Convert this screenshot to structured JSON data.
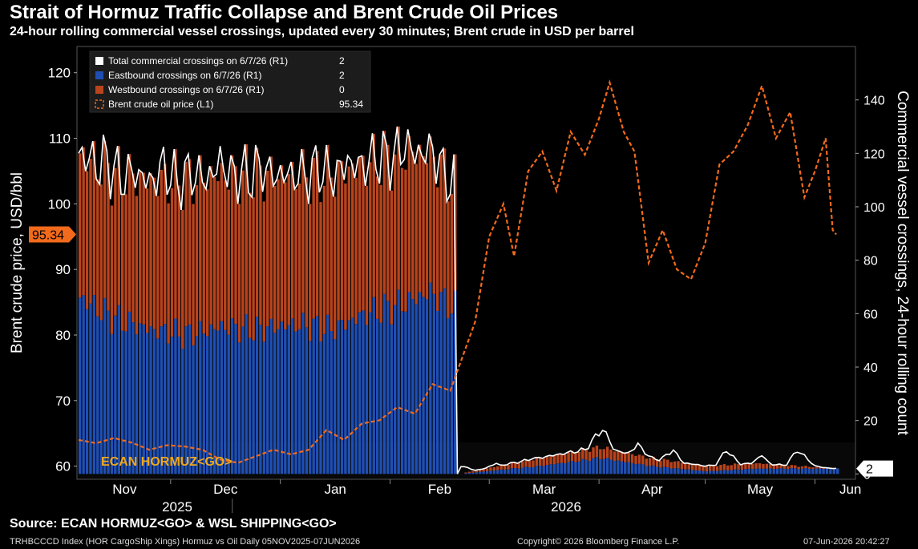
{
  "header": {
    "title": "Strait of Hormuz Traffic Collapse and Brent Crude Oil Prices",
    "subtitle": "24-hour rolling commercial vessel crossings, updated every 30 minutes; Brent crude in USD per barrel"
  },
  "footer": {
    "source": "Source: ECAN HORMUZ<GO> & WSL SHIPPING<GO>",
    "index_line": "TRHBCCCD Index (HOR CargoShip Xings) Hormuz vs Oil Daily 05NOV2025-07JUN2026",
    "copyright": "Copyright© 2026 Bloomberg Finance L.P.",
    "timestamp": "07-Jun-2026 20:42:27"
  },
  "colors": {
    "background": "#000000",
    "total": "#ffffff",
    "eastbound": "#1f4fb4",
    "westbound": "#b8441d",
    "brent": "#f26a1b",
    "ecan_label": "#f0a81c",
    "current_brent_tag": "#f26a1b"
  },
  "chart_data": {
    "type": "line",
    "title": "Strait of Hormuz Traffic Collapse and Brent Crude Oil Prices",
    "x_range": [
      "2025-11-05",
      "2026-06-07"
    ],
    "x_ticks": [
      "Nov",
      "Dec",
      "Jan",
      "Feb",
      "Mar",
      "Apr",
      "May",
      "Jun"
    ],
    "year_labels": [
      "2025",
      "2026"
    ],
    "y_left": {
      "label": "Brent crude price, USD/bbl",
      "range": [
        58,
        124
      ],
      "ticks": [
        60,
        70,
        80,
        90,
        100,
        110,
        120
      ]
    },
    "y_right": {
      "label": "Commercial vessel crossings, 24-hour rolling count",
      "range": [
        -2,
        160
      ],
      "ticks": [
        0,
        20,
        40,
        60,
        80,
        100,
        120,
        140
      ]
    },
    "current_left_tag": "95.34",
    "current_right_tag": "2",
    "annotation": "ECAN HORMUZ<GO>",
    "grid": false,
    "legend_position": "top-left",
    "legend": [
      {
        "label": "Total commercial crossings on 6/7/26 (R1)",
        "value": "2",
        "swatch": "white-box"
      },
      {
        "label": "Eastbound crossings on 6/7/26 (R1)",
        "value": "2",
        "swatch": "blue-box"
      },
      {
        "label": "Westbound crossings on 6/7/26 (R1)",
        "value": "0",
        "swatch": "orange-box"
      },
      {
        "label": "Brent crude oil price (L1)",
        "value": "95.34",
        "swatch": "dashed-orange"
      }
    ],
    "series": [
      {
        "name": "Total commercial crossings on 6/7/26 (R1)",
        "axis": "right",
        "points": [
          [
            "2025-11-05",
            120
          ],
          [
            "2025-11-09",
            112
          ],
          [
            "2025-11-13",
            118
          ],
          [
            "2025-11-17",
            108
          ],
          [
            "2025-11-21",
            114
          ],
          [
            "2025-11-25",
            104
          ],
          [
            "2025-11-29",
            116
          ],
          [
            "2025-12-03",
            106
          ],
          [
            "2025-12-07",
            114
          ],
          [
            "2025-12-11",
            104
          ],
          [
            "2025-12-15",
            118
          ],
          [
            "2025-12-19",
            108
          ],
          [
            "2025-12-23",
            110
          ],
          [
            "2025-12-27",
            116
          ],
          [
            "2025-12-31",
            104
          ],
          [
            "2026-01-04",
            112
          ],
          [
            "2026-01-08",
            108
          ],
          [
            "2026-01-12",
            116
          ],
          [
            "2026-01-16",
            106
          ],
          [
            "2026-01-20",
            118
          ],
          [
            "2026-01-24",
            108
          ],
          [
            "2026-01-28",
            120
          ],
          [
            "2026-02-01",
            112
          ],
          [
            "2026-02-05",
            124
          ],
          [
            "2026-02-09",
            118
          ],
          [
            "2026-02-13",
            122
          ],
          [
            "2026-02-16",
            110
          ],
          [
            "2026-02-19",
            108
          ],
          [
            "2026-02-20",
            0
          ],
          [
            "2026-02-21",
            3
          ],
          [
            "2026-02-26",
            1
          ],
          [
            "2026-03-03",
            4
          ],
          [
            "2026-03-08",
            0
          ],
          [
            "2026-03-13",
            6
          ],
          [
            "2026-03-18",
            3
          ],
          [
            "2026-03-23",
            7
          ],
          [
            "2026-03-28",
            9
          ],
          [
            "2026-04-02",
            17
          ],
          [
            "2026-04-07",
            5
          ],
          [
            "2026-04-12",
            11
          ],
          [
            "2026-04-17",
            4
          ],
          [
            "2026-04-22",
            9
          ],
          [
            "2026-04-27",
            0
          ],
          [
            "2026-05-02",
            0
          ],
          [
            "2026-05-07",
            9
          ],
          [
            "2026-05-12",
            2
          ],
          [
            "2026-05-17",
            7
          ],
          [
            "2026-05-22",
            0
          ],
          [
            "2026-05-27",
            9
          ],
          [
            "2026-06-01",
            3
          ],
          [
            "2026-06-05",
            2
          ],
          [
            "2026-06-07",
            2
          ]
        ]
      },
      {
        "name": "Eastbound crossings on 6/7/26 (R1)",
        "axis": "right",
        "points": [
          [
            "2025-11-05",
            66
          ],
          [
            "2025-11-15",
            58
          ],
          [
            "2025-11-25",
            54
          ],
          [
            "2025-12-05",
            52
          ],
          [
            "2025-12-15",
            55
          ],
          [
            "2025-12-25",
            54
          ],
          [
            "2026-01-05",
            56
          ],
          [
            "2026-01-15",
            54
          ],
          [
            "2026-01-25",
            60
          ],
          [
            "2026-02-05",
            64
          ],
          [
            "2026-02-12",
            68
          ],
          [
            "2026-02-19",
            62
          ],
          [
            "2026-02-20",
            0
          ],
          [
            "2026-03-15",
            3
          ],
          [
            "2026-04-01",
            6
          ],
          [
            "2026-04-15",
            3
          ],
          [
            "2026-05-01",
            1
          ],
          [
            "2026-05-15",
            2
          ],
          [
            "2026-06-07",
            2
          ]
        ]
      },
      {
        "name": "Westbound crossings on 6/7/26 (R1)",
        "axis": "right",
        "points": [
          [
            "2025-11-05",
            54
          ],
          [
            "2025-11-15",
            54
          ],
          [
            "2025-11-25",
            56
          ],
          [
            "2025-12-05",
            58
          ],
          [
            "2025-12-15",
            57
          ],
          [
            "2025-12-25",
            58
          ],
          [
            "2026-01-05",
            56
          ],
          [
            "2026-01-15",
            58
          ],
          [
            "2026-01-25",
            56
          ],
          [
            "2026-02-05",
            56
          ],
          [
            "2026-02-12",
            52
          ],
          [
            "2026-02-19",
            46
          ],
          [
            "2026-02-20",
            0
          ],
          [
            "2026-03-15",
            3
          ],
          [
            "2026-04-01",
            4
          ],
          [
            "2026-04-15",
            3
          ],
          [
            "2026-05-01",
            2
          ],
          [
            "2026-05-15",
            2
          ],
          [
            "2026-06-07",
            0
          ]
        ]
      },
      {
        "name": "Brent crude oil price (L1)",
        "axis": "left",
        "points": [
          [
            "2025-11-05",
            64.0
          ],
          [
            "2025-11-10",
            63.5
          ],
          [
            "2025-11-15",
            64.3
          ],
          [
            "2025-11-20",
            63.6
          ],
          [
            "2025-11-25",
            62.5
          ],
          [
            "2025-11-30",
            63.2
          ],
          [
            "2025-12-05",
            63.0
          ],
          [
            "2025-12-10",
            62.5
          ],
          [
            "2025-12-15",
            61.0
          ],
          [
            "2025-12-20",
            60.5
          ],
          [
            "2025-12-25",
            61.5
          ],
          [
            "2025-12-30",
            62.5
          ],
          [
            "2026-01-04",
            61.8
          ],
          [
            "2026-01-09",
            62.5
          ],
          [
            "2026-01-14",
            65.5
          ],
          [
            "2026-01-19",
            64.0
          ],
          [
            "2026-01-24",
            66.5
          ],
          [
            "2026-01-29",
            67.0
          ],
          [
            "2026-02-03",
            69.0
          ],
          [
            "2026-02-08",
            68.0
          ],
          [
            "2026-02-13",
            72.5
          ],
          [
            "2026-02-18",
            71.5
          ],
          [
            "2026-02-21",
            76.0
          ],
          [
            "2026-02-25",
            82.0
          ],
          [
            "2026-03-01",
            95.0
          ],
          [
            "2026-03-05",
            100.0
          ],
          [
            "2026-03-08",
            92.0
          ],
          [
            "2026-03-12",
            105.0
          ],
          [
            "2026-03-16",
            108.0
          ],
          [
            "2026-03-20",
            102.0
          ],
          [
            "2026-03-24",
            111.0
          ],
          [
            "2026-03-28",
            107.5
          ],
          [
            "2026-04-01",
            113.0
          ],
          [
            "2026-04-04",
            118.5
          ],
          [
            "2026-04-08",
            111.0
          ],
          [
            "2026-04-11",
            108.0
          ],
          [
            "2026-04-15",
            91.0
          ],
          [
            "2026-04-19",
            96.0
          ],
          [
            "2026-04-23",
            90.0
          ],
          [
            "2026-04-27",
            88.5
          ],
          [
            "2026-05-01",
            94.0
          ],
          [
            "2026-05-05",
            106.0
          ],
          [
            "2026-05-09",
            108.0
          ],
          [
            "2026-05-13",
            112.0
          ],
          [
            "2026-05-17",
            118.0
          ],
          [
            "2026-05-21",
            110.0
          ],
          [
            "2026-05-25",
            114.0
          ],
          [
            "2026-05-29",
            101.0
          ],
          [
            "2026-06-01",
            105.0
          ],
          [
            "2026-06-04",
            110.0
          ],
          [
            "2026-06-06",
            96.0
          ],
          [
            "2026-06-07",
            95.34
          ]
        ]
      }
    ]
  }
}
